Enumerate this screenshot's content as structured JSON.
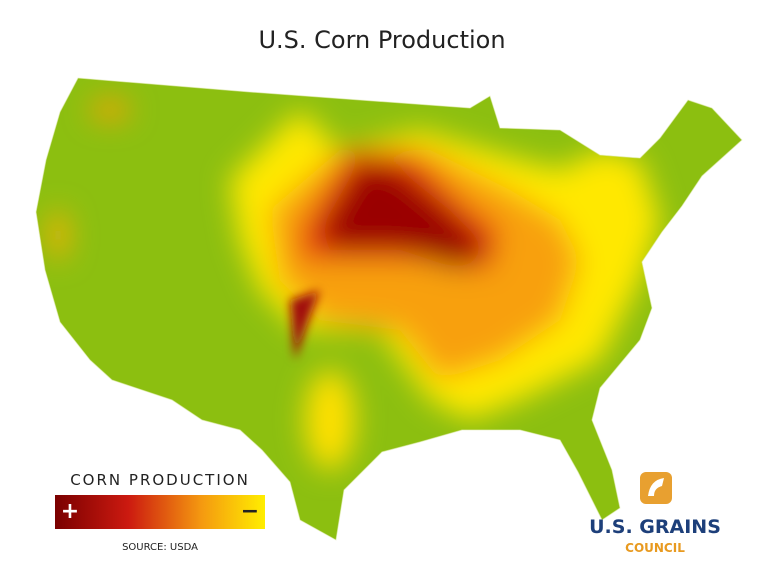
{
  "header": {
    "title": "U.S. Corn Production"
  },
  "legend": {
    "title": "CORN PRODUCTION",
    "high": "+",
    "low": "−"
  },
  "source": "SOURCE: USDA",
  "logo": {
    "line1": "U.S. GRAINS",
    "line2": "COUNCIL"
  }
}
